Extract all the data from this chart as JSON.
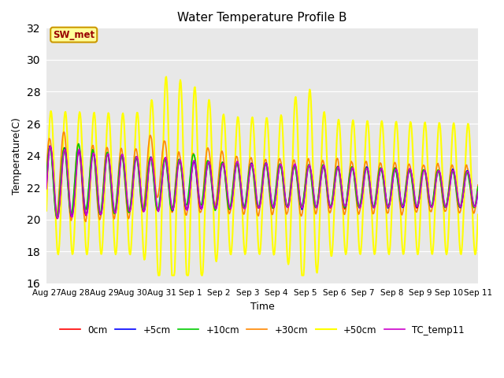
{
  "title": "Water Temperature Profile B",
  "xlabel": "Time",
  "ylabel": "Temperature(C)",
  "ylim": [
    16,
    32
  ],
  "yticks": [
    16,
    18,
    20,
    22,
    24,
    26,
    28,
    30,
    32
  ],
  "xtick_labels": [
    "Aug 27",
    "Aug 28",
    "Aug 29",
    "Aug 30",
    "Aug 31",
    "Sep 1",
    "Sep 2",
    "Sep 3",
    "Sep 4",
    "Sep 5",
    "Sep 6",
    "Sep 7",
    "Sep 8",
    "Sep 9",
    "Sep 10",
    "Sep 11"
  ],
  "bg_color": "#e8e8e8",
  "annotation_text": "SW_met",
  "annotation_bg": "#ffff99",
  "annotation_fg": "#990000",
  "series": {
    "0cm": {
      "color": "#ff0000",
      "lw": 1.2
    },
    "+5cm": {
      "color": "#0000ff",
      "lw": 1.2
    },
    "+10cm": {
      "color": "#00cc00",
      "lw": 1.2
    },
    "+30cm": {
      "color": "#ff8800",
      "lw": 1.2
    },
    "+50cm": {
      "color": "#ffff00",
      "lw": 1.5
    },
    "TC_temp11": {
      "color": "#cc00cc",
      "lw": 1.2
    }
  }
}
